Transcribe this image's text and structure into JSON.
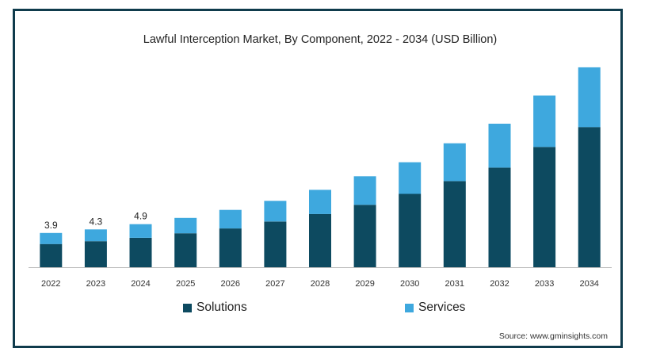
{
  "chart_data": {
    "type": "bar",
    "stacked": true,
    "title": "Lawful Interception Market, By Component, 2022 - 2034 (USD Billion)",
    "categories": [
      "2022",
      "2023",
      "2024",
      "2025",
      "2026",
      "2027",
      "2028",
      "2029",
      "2030",
      "2031",
      "2032",
      "2033",
      "2034"
    ],
    "series": [
      {
        "name": "Solutions",
        "color": "#0d4a60",
        "values": [
          2.64,
          2.96,
          3.35,
          3.86,
          4.41,
          5.2,
          6.06,
          7.1,
          8.35,
          9.8,
          11.33,
          13.69,
          15.95
        ]
      },
      {
        "name": "Services",
        "color": "#3ea8de",
        "values": [
          1.26,
          1.34,
          1.55,
          1.75,
          2.11,
          2.35,
          2.75,
          3.25,
          3.6,
          4.3,
          5.0,
          5.85,
          6.8
        ]
      }
    ],
    "data_labels": [
      {
        "category": "2022",
        "text": "3.9"
      },
      {
        "category": "2023",
        "text": "4.3"
      },
      {
        "category": "2024",
        "text": "4.9"
      }
    ],
    "ylim": [
      0,
      23.1
    ],
    "grid": false,
    "legend_position": "bottom"
  },
  "source": "Source: www.gminsights.com"
}
